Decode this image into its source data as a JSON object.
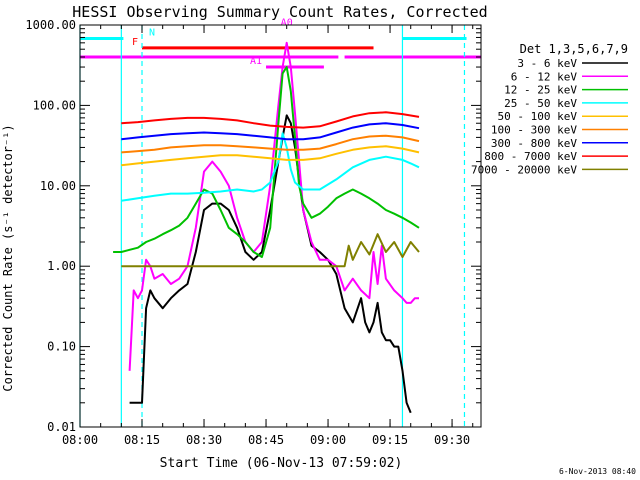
{
  "chart_data": {
    "type": "line",
    "title": "HESSI Observing Summary Count Rates, Corrected",
    "xlabel": "Start Time (06-Nov-13 07:59:02)",
    "ylabel": "Corrected Count Rate (s⁻¹ detector⁻¹)",
    "footer": "6-Nov-2013 08:40",
    "y_scale": "log",
    "ylim": [
      0.01,
      1000
    ],
    "xlim": [
      "08:00",
      "09:37"
    ],
    "x_ticks": [
      "08:00",
      "08:15",
      "08:30",
      "08:45",
      "09:00",
      "09:15",
      "09:30"
    ],
    "y_ticks": [
      "0.01",
      "0.10",
      "1.00",
      "10.00",
      "100.00",
      "1000.00"
    ],
    "legend_title": "Det 1,3,5,6,7,9",
    "legend_position": "right",
    "series": [
      {
        "name": "3 - 6 keV",
        "color": "#000000",
        "x": [
          "08:12",
          "08:13",
          "08:14",
          "08:15",
          "08:16",
          "08:17",
          "08:18",
          "08:20",
          "08:22",
          "08:24",
          "08:26",
          "08:28",
          "08:30",
          "08:32",
          "08:34",
          "08:36",
          "08:38",
          "08:40",
          "08:42",
          "08:44",
          "08:46",
          "08:48",
          "08:49",
          "08:50",
          "08:51",
          "08:52",
          "08:53",
          "08:54",
          "08:55",
          "08:56",
          "08:58",
          "09:00",
          "09:02",
          "09:04",
          "09:06",
          "09:08",
          "09:09",
          "09:10",
          "09:11",
          "09:12",
          "09:13",
          "09:14",
          "09:15",
          "09:16",
          "09:17",
          "09:18",
          "09:19",
          "09:20"
        ],
        "y": [
          0.02,
          0.02,
          0.02,
          0.02,
          0.3,
          0.5,
          0.4,
          0.3,
          0.4,
          0.5,
          0.6,
          1.5,
          5,
          6,
          6,
          5,
          3,
          1.5,
          1.2,
          1.5,
          5,
          20,
          40,
          75,
          60,
          30,
          12,
          5,
          3,
          1.8,
          1.5,
          1.2,
          0.8,
          0.3,
          0.2,
          0.4,
          0.2,
          0.15,
          0.2,
          0.35,
          0.15,
          0.12,
          0.12,
          0.1,
          0.1,
          0.05,
          0.02,
          0.015
        ]
      },
      {
        "name": "6 - 12 keV",
        "color": "#ff00ff",
        "x": [
          "08:12",
          "08:13",
          "08:14",
          "08:15",
          "08:16",
          "08:17",
          "08:18",
          "08:20",
          "08:22",
          "08:24",
          "08:26",
          "08:28",
          "08:30",
          "08:32",
          "08:34",
          "08:36",
          "08:38",
          "08:40",
          "08:42",
          "08:44",
          "08:46",
          "08:48",
          "08:49",
          "08:50",
          "08:51",
          "08:52",
          "08:53",
          "08:54",
          "08:56",
          "08:58",
          "09:00",
          "09:02",
          "09:04",
          "09:06",
          "09:08",
          "09:10",
          "09:11",
          "09:12",
          "09:13",
          "09:14",
          "09:16",
          "09:18",
          "09:19",
          "09:20",
          "09:21",
          "09:22"
        ],
        "y": [
          0.05,
          0.5,
          0.4,
          0.5,
          1.2,
          1.0,
          0.7,
          0.8,
          0.6,
          0.7,
          1.0,
          3,
          15,
          20,
          15,
          10,
          4,
          2,
          1.5,
          2,
          10,
          100,
          300,
          600,
          300,
          80,
          20,
          5,
          2,
          1.2,
          1.2,
          1.0,
          0.5,
          0.7,
          0.5,
          0.4,
          1.5,
          0.6,
          1.8,
          0.7,
          0.5,
          0.4,
          0.35,
          0.35,
          0.4,
          0.4
        ]
      },
      {
        "name": "12 - 25 keV",
        "color": "#00c000",
        "x": [
          "08:08",
          "08:10",
          "08:12",
          "08:14",
          "08:16",
          "08:18",
          "08:20",
          "08:22",
          "08:24",
          "08:26",
          "08:28",
          "08:30",
          "08:32",
          "08:34",
          "08:36",
          "08:38",
          "08:40",
          "08:42",
          "08:44",
          "08:46",
          "08:48",
          "08:49",
          "08:50",
          "08:51",
          "08:52",
          "08:53",
          "08:54",
          "08:56",
          "08:58",
          "09:00",
          "09:02",
          "09:04",
          "09:06",
          "09:08",
          "09:10",
          "09:12",
          "09:14",
          "09:16",
          "09:18",
          "09:20",
          "09:22"
        ],
        "y": [
          1.5,
          1.5,
          1.6,
          1.7,
          2,
          2.2,
          2.5,
          2.8,
          3.2,
          4,
          6,
          9,
          8,
          5,
          3,
          2.5,
          2,
          1.5,
          1.3,
          3,
          60,
          250,
          300,
          150,
          40,
          10,
          6,
          4,
          4.5,
          5.5,
          7,
          8,
          9,
          8,
          7,
          6,
          5,
          4.5,
          4,
          3.5,
          3
        ]
      },
      {
        "name": "25 - 50 keV",
        "color": "#00ffff",
        "x": [
          "08:10",
          "08:14",
          "08:18",
          "08:22",
          "08:26",
          "08:30",
          "08:34",
          "08:38",
          "08:42",
          "08:44",
          "08:46",
          "08:48",
          "08:49",
          "08:50",
          "08:51",
          "08:52",
          "08:54",
          "08:58",
          "09:02",
          "09:06",
          "09:10",
          "09:14",
          "09:18",
          "09:20",
          "09:22"
        ],
        "y": [
          6.5,
          7,
          7.5,
          8,
          8,
          8.2,
          8.5,
          9,
          8.5,
          9,
          11,
          20,
          45,
          30,
          16,
          11,
          9,
          9,
          12,
          17,
          21,
          23,
          21,
          19,
          17
        ]
      },
      {
        "name": "50 - 100 keV",
        "color": "#ffc000",
        "x": [
          "08:10",
          "08:14",
          "08:18",
          "08:22",
          "08:26",
          "08:30",
          "08:34",
          "08:38",
          "08:42",
          "08:46",
          "08:50",
          "08:54",
          "08:58",
          "09:02",
          "09:06",
          "09:10",
          "09:14",
          "09:18",
          "09:22"
        ],
        "y": [
          18,
          19,
          20,
          21,
          22,
          23,
          24,
          24,
          23,
          22,
          21,
          21,
          22,
          25,
          28,
          30,
          31,
          29,
          26
        ]
      },
      {
        "name": "100 - 300 keV",
        "color": "#ff8000",
        "x": [
          "08:10",
          "08:14",
          "08:18",
          "08:22",
          "08:26",
          "08:30",
          "08:34",
          "08:38",
          "08:42",
          "08:46",
          "08:50",
          "08:54",
          "08:58",
          "09:02",
          "09:06",
          "09:10",
          "09:14",
          "09:18",
          "09:22"
        ],
        "y": [
          26,
          27,
          28,
          30,
          31,
          32,
          32,
          31,
          30,
          29,
          28,
          28,
          29,
          33,
          38,
          41,
          42,
          40,
          36
        ]
      },
      {
        "name": "300 - 800 keV",
        "color": "#0000ff",
        "x": [
          "08:10",
          "08:14",
          "08:18",
          "08:22",
          "08:26",
          "08:30",
          "08:34",
          "08:38",
          "08:42",
          "08:46",
          "08:50",
          "08:54",
          "08:58",
          "09:02",
          "09:06",
          "09:10",
          "09:14",
          "09:18",
          "09:22"
        ],
        "y": [
          38,
          40,
          42,
          44,
          45,
          46,
          45,
          44,
          42,
          40,
          38,
          38,
          40,
          46,
          53,
          58,
          60,
          57,
          52
        ]
      },
      {
        "name": "800 - 7000 keV",
        "color": "#ff0000",
        "x": [
          "08:10",
          "08:14",
          "08:18",
          "08:22",
          "08:26",
          "08:30",
          "08:34",
          "08:38",
          "08:42",
          "08:46",
          "08:50",
          "08:54",
          "08:58",
          "09:02",
          "09:06",
          "09:10",
          "09:14",
          "09:18",
          "09:22"
        ],
        "y": [
          60,
          62,
          65,
          68,
          70,
          70,
          68,
          65,
          60,
          56,
          54,
          53,
          55,
          63,
          73,
          80,
          82,
          78,
          72
        ]
      },
      {
        "name": "7000 - 20000 keV",
        "color": "#808000",
        "x": [
          "08:10",
          "08:20",
          "08:30",
          "08:40",
          "08:50",
          "09:00",
          "09:04",
          "09:05",
          "09:06",
          "09:08",
          "09:10",
          "09:12",
          "09:14",
          "09:16",
          "09:18",
          "09:20",
          "09:22"
        ],
        "y": [
          1,
          1,
          1,
          1,
          1,
          1,
          1,
          1.8,
          1.2,
          2,
          1.4,
          2.5,
          1.5,
          2,
          1.3,
          2,
          1.5
        ]
      }
    ],
    "annotations": [
      {
        "label": "N",
        "color": "#00ffff",
        "segments": [
          [
            "08:00",
            "08:10:30"
          ],
          [
            "09:18",
            "09:33:30"
          ]
        ],
        "level": 680
      },
      {
        "label": "F",
        "color": "#ff0000",
        "segments": [
          [
            "08:15",
            "09:11"
          ]
        ],
        "level": 520
      },
      {
        "label": "",
        "color": "#ff00ff",
        "segments": [
          [
            "08:00",
            "09:02:30"
          ],
          [
            "09:04",
            "09:37"
          ]
        ],
        "level": 400
      },
      {
        "label": "A1",
        "color": "#ff00ff",
        "segments": [
          [
            "08:45",
            "08:59"
          ]
        ],
        "level": 300
      },
      {
        "label": "A0",
        "color": "#ff00ff",
        "segments": [],
        "level": 900
      }
    ],
    "vertical_markers": [
      {
        "time": "08:00",
        "color": "#00ffff",
        "style": "solid"
      },
      {
        "time": "08:10",
        "color": "#00ffff",
        "style": "solid"
      },
      {
        "time": "08:15",
        "color": "#00ffff",
        "style": "dashed"
      },
      {
        "time": "09:18",
        "color": "#00ffff",
        "style": "solid"
      },
      {
        "time": "09:33",
        "color": "#00ffff",
        "style": "dashed"
      }
    ]
  }
}
